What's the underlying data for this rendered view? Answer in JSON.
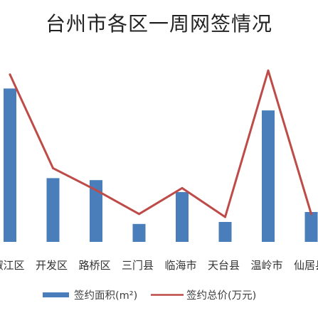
{
  "chart_data": {
    "type": "bar",
    "title": "台州市各区一周网签情况",
    "xlabel": "",
    "ylabel": "",
    "categories": [
      "椒江区",
      "开发区",
      "路桥区",
      "三门县",
      "临海市",
      "天台县",
      "温岭市",
      "仙居县"
    ],
    "series": [
      {
        "name": "签约面积(m²)",
        "type": "bar",
        "values": [
          77,
          32,
          31,
          9,
          25,
          10,
          66,
          15
        ]
      },
      {
        "name": "签约总价(万元)",
        "type": "line",
        "values": [
          84,
          37,
          26,
          14,
          27,
          12.5,
          86,
          14
        ]
      }
    ],
    "ylim": [
      0,
      100
    ],
    "grid": false,
    "y_axis_shown": false,
    "legend": "bottom"
  },
  "colors": {
    "bar": "#4A7EBB",
    "line": "#BE4B48"
  }
}
